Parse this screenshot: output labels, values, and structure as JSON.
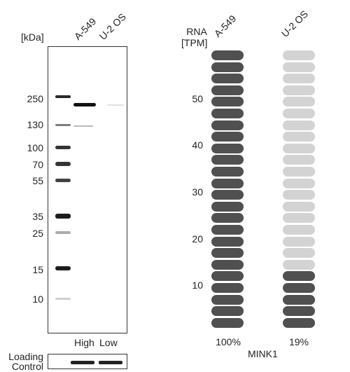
{
  "western_blot": {
    "unit_label": "[kDa]",
    "lanes": [
      "A-549",
      "U-2 OS"
    ],
    "markers": [
      "250",
      "130",
      "100",
      "70",
      "55",
      "35",
      "25",
      "15",
      "10"
    ],
    "expression_labels": [
      "High",
      "Low"
    ],
    "loading_control_label": "Loading\nControl"
  },
  "rna": {
    "axis_title_line1": "RNA",
    "axis_title_line2": "[TPM]",
    "ticks": [
      "50",
      "40",
      "30",
      "20",
      "10"
    ],
    "samples": [
      {
        "name": "A-549",
        "percent": "100%",
        "filled_fraction": 1.0
      },
      {
        "name": "U-2 OS",
        "percent": "19%",
        "filled_fraction": 0.19
      }
    ],
    "gene": "MINK1",
    "colors": {
      "filled": "#505050",
      "empty": "#d3d3d3"
    }
  }
}
